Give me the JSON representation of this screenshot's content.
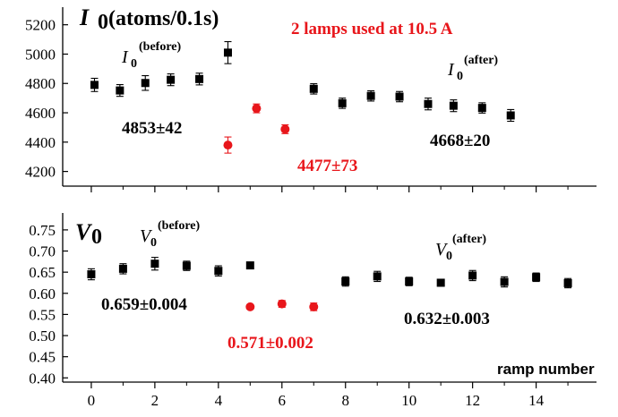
{
  "colors": {
    "series_black": "#000000",
    "series_red": "#e8161b"
  },
  "header": {
    "note": "2 lamps used at 10.5 A"
  },
  "chart_data": [
    {
      "type": "scatter",
      "panel_label": {
        "symbol": "I",
        "subscript": "0",
        "unit": "(atoms/0.1s)"
      },
      "ylim": [
        4100,
        5320
      ],
      "yticks": [
        "4200",
        "4400",
        "4600",
        "4800",
        "5000",
        "5200"
      ],
      "yticks_values": [
        4200,
        4400,
        4600,
        4800,
        5000,
        5200
      ],
      "series": [
        {
          "color": "#000000",
          "marker": "square",
          "points": [
            {
              "x": 0.1,
              "y": 4790,
              "err": 45
            },
            {
              "x": 0.9,
              "y": 4752,
              "err": 40
            },
            {
              "x": 1.7,
              "y": 4803,
              "err": 50
            },
            {
              "x": 2.5,
              "y": 4825,
              "err": 40
            },
            {
              "x": 3.4,
              "y": 4830,
              "err": 40
            },
            {
              "x": 4.3,
              "y": 5010,
              "err": 75
            },
            {
              "x": 7.0,
              "y": 4763,
              "err": 35
            },
            {
              "x": 7.9,
              "y": 4665,
              "err": 35
            },
            {
              "x": 8.8,
              "y": 4715,
              "err": 35
            },
            {
              "x": 9.7,
              "y": 4710,
              "err": 35
            },
            {
              "x": 10.6,
              "y": 4660,
              "err": 40
            },
            {
              "x": 11.4,
              "y": 4648,
              "err": 40
            },
            {
              "x": 12.3,
              "y": 4633,
              "err": 35
            },
            {
              "x": 13.2,
              "y": 4582,
              "err": 40
            }
          ]
        },
        {
          "color": "#e8161b",
          "marker": "circle",
          "points": [
            {
              "x": 4.3,
              "y": 4380,
              "err": 55
            },
            {
              "x": 5.2,
              "y": 4630,
              "err": 30
            },
            {
              "x": 6.1,
              "y": 4488,
              "err": 30
            }
          ]
        }
      ],
      "annotations": [
        {
          "id": "before_label",
          "text": "I",
          "sub": "0",
          "sup": "(before)"
        },
        {
          "id": "after_label",
          "text": "I",
          "sub": "0",
          "sup": "(after)"
        },
        {
          "id": "before_value",
          "text": "4853±42",
          "color": "#000000"
        },
        {
          "id": "red_value",
          "text": "4477±73",
          "color": "#e8161b"
        },
        {
          "id": "after_value",
          "text": "4668±20",
          "color": "#000000"
        }
      ]
    },
    {
      "type": "scatter",
      "panel_label": {
        "symbol": "V",
        "subscript": "0"
      },
      "xlabel": "ramp number",
      "xlim": [
        -0.9,
        15.9
      ],
      "xticks": [
        "0",
        "2",
        "4",
        "6",
        "8",
        "10",
        "12",
        "14"
      ],
      "xticks_values": [
        0,
        2,
        4,
        6,
        8,
        10,
        12,
        14
      ],
      "ylim": [
        0.39,
        0.79
      ],
      "yticks": [
        "0.40",
        "0.45",
        "0.50",
        "0.55",
        "0.60",
        "0.65",
        "0.70",
        "0.75"
      ],
      "yticks_values": [
        0.4,
        0.45,
        0.5,
        0.55,
        0.6,
        0.65,
        0.7,
        0.75
      ],
      "series": [
        {
          "color": "#000000",
          "marker": "square",
          "points": [
            {
              "x": 0,
              "y": 0.645,
              "err": 0.013
            },
            {
              "x": 1,
              "y": 0.658,
              "err": 0.012
            },
            {
              "x": 2,
              "y": 0.67,
              "err": 0.015
            },
            {
              "x": 3,
              "y": 0.665,
              "err": 0.011
            },
            {
              "x": 4,
              "y": 0.653,
              "err": 0.012
            },
            {
              "x": 5,
              "y": 0.666,
              "err": 0.004
            },
            {
              "x": 8,
              "y": 0.628,
              "err": 0.011
            },
            {
              "x": 9,
              "y": 0.64,
              "err": 0.012
            },
            {
              "x": 10,
              "y": 0.628,
              "err": 0.01
            },
            {
              "x": 11,
              "y": 0.625,
              "err": 0.008
            },
            {
              "x": 12,
              "y": 0.642,
              "err": 0.012
            },
            {
              "x": 13,
              "y": 0.627,
              "err": 0.012
            },
            {
              "x": 14,
              "y": 0.638,
              "err": 0.01
            },
            {
              "x": 15,
              "y": 0.624,
              "err": 0.011
            }
          ]
        },
        {
          "color": "#e8161b",
          "marker": "circle",
          "points": [
            {
              "x": 5,
              "y": 0.568,
              "err": 0.005
            },
            {
              "x": 6,
              "y": 0.575,
              "err": 0.008
            },
            {
              "x": 7,
              "y": 0.568,
              "err": 0.009
            }
          ]
        }
      ],
      "annotations": [
        {
          "id": "before_label",
          "text": "V",
          "sub": "0",
          "sup": "(before)"
        },
        {
          "id": "after_label",
          "text": "V",
          "sub": "0",
          "sup": "(after)"
        },
        {
          "id": "before_value",
          "text": "0.659±0.004",
          "color": "#000000"
        },
        {
          "id": "red_value",
          "text": "0.571±0.002",
          "color": "#e8161b"
        },
        {
          "id": "after_value",
          "text": "0.632±0.003",
          "color": "#000000"
        }
      ]
    }
  ]
}
